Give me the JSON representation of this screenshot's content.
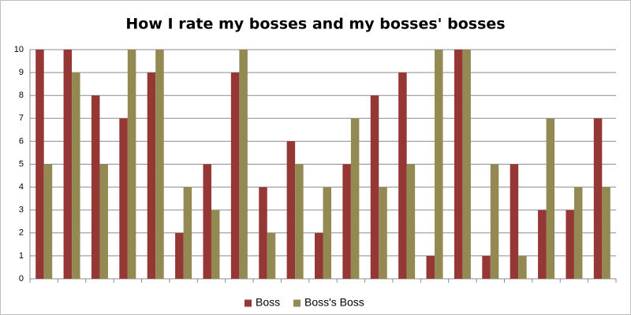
{
  "chart_data": {
    "type": "bar",
    "title": "How I rate my bosses and my bosses' bosses",
    "categories": [
      null,
      null,
      null,
      null,
      null,
      null,
      null,
      null,
      null,
      null,
      null,
      null,
      null,
      null,
      null,
      null,
      null,
      null,
      null,
      null,
      null
    ],
    "series": [
      {
        "name": "Boss",
        "color": "#953735",
        "values": [
          10,
          10,
          8,
          7,
          9,
          2,
          5,
          9,
          4,
          6,
          2,
          5,
          8,
          9,
          1,
          10,
          1,
          5,
          3,
          3,
          7
        ]
      },
      {
        "name": "Boss's Boss",
        "color": "#938953",
        "values": [
          5,
          9,
          5,
          10,
          10,
          4,
          3,
          10,
          2,
          5,
          4,
          7,
          4,
          5,
          10,
          10,
          5,
          1,
          7,
          4,
          4
        ]
      }
    ],
    "ylim": [
      0,
      10
    ],
    "yticks": [
      0,
      1,
      2,
      3,
      4,
      5,
      6,
      7,
      8,
      9,
      10
    ],
    "grid": true,
    "legend": "bottom"
  }
}
